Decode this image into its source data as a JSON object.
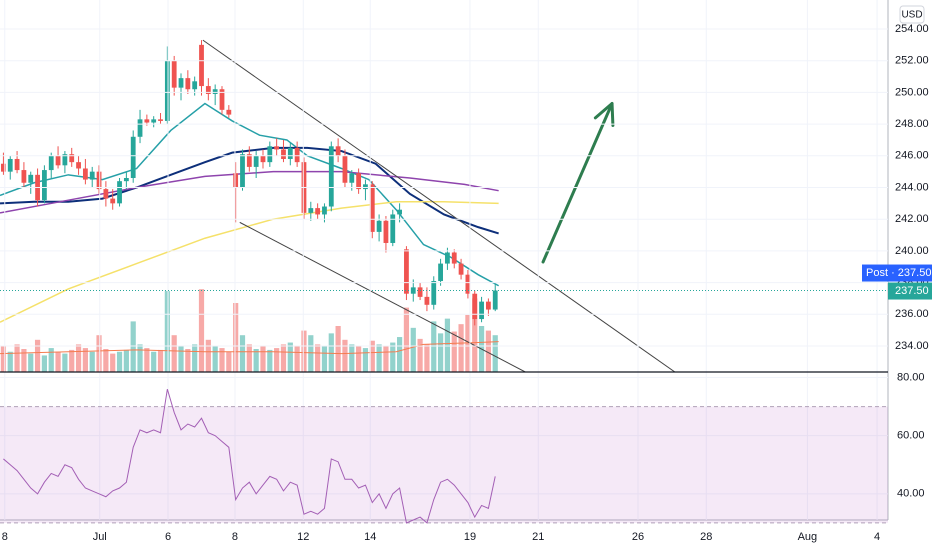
{
  "chart_data": {
    "type": "candlestick",
    "currency": "USD",
    "xlim": [
      0,
      130
    ],
    "xticks": [
      {
        "value": 0.7,
        "label": "8"
      },
      {
        "value": 14.6,
        "label": "Jul"
      },
      {
        "value": 24.6,
        "label": "6"
      },
      {
        "value": 34.4,
        "label": "8"
      },
      {
        "value": 44.4,
        "label": "12"
      },
      {
        "value": 54.2,
        "label": "14"
      },
      {
        "value": 68.8,
        "label": "19"
      },
      {
        "value": 78.8,
        "label": "21"
      },
      {
        "value": 93.4,
        "label": "26"
      },
      {
        "value": 103.4,
        "label": "28"
      },
      {
        "value": 118.2,
        "label": "Aug"
      },
      {
        "value": 128.4,
        "label": "4"
      }
    ],
    "ylim": [
      232.36,
      255.83
    ],
    "yticks": [
      {
        "value": 234,
        "label": "234.00"
      },
      {
        "value": 236,
        "label": "236.00"
      },
      {
        "value": 238,
        "label": "238.00"
      },
      {
        "value": 240,
        "label": "240.00"
      },
      {
        "value": 242,
        "label": "242.00"
      },
      {
        "value": 244,
        "label": "244.00"
      },
      {
        "value": 246,
        "label": "246.00"
      },
      {
        "value": 248,
        "label": "248.00"
      },
      {
        "value": 250,
        "label": "250.00"
      },
      {
        "value": 252,
        "label": "252.00"
      },
      {
        "value": 254,
        "label": "254.00"
      }
    ],
    "grid": true,
    "up_color": "#26a69a",
    "down_color": "#ef5350",
    "candles": [
      [
        245.5,
        246.2,
        244.8,
        245.0
      ],
      [
        245.0,
        246.0,
        244.5,
        245.8
      ],
      [
        245.8,
        246.3,
        244.9,
        245.1
      ],
      [
        245.1,
        245.6,
        244.0,
        244.3
      ],
      [
        244.3,
        245.0,
        243.6,
        244.8
      ],
      [
        244.8,
        245.2,
        242.8,
        243.2
      ],
      [
        243.2,
        245.4,
        243.0,
        245.1
      ],
      [
        245.1,
        246.2,
        244.6,
        246.0
      ],
      [
        246.0,
        246.6,
        245.2,
        245.4
      ],
      [
        245.4,
        246.3,
        244.9,
        246.1
      ],
      [
        246.1,
        246.5,
        245.3,
        245.6
      ],
      [
        245.6,
        246.0,
        244.8,
        245.2
      ],
      [
        245.2,
        245.8,
        244.2,
        244.5
      ],
      [
        244.5,
        245.3,
        244.0,
        245.0
      ],
      [
        245.0,
        245.4,
        243.6,
        243.9
      ],
      [
        243.9,
        244.4,
        242.8,
        243.3
      ],
      [
        243.3,
        243.9,
        242.6,
        243.0
      ],
      [
        243.0,
        244.6,
        242.8,
        244.4
      ],
      [
        244.4,
        245.0,
        243.9,
        244.6
      ],
      [
        244.6,
        247.6,
        244.3,
        247.2
      ],
      [
        247.2,
        248.9,
        246.8,
        248.3
      ],
      [
        248.3,
        248.6,
        247.9,
        248.1
      ],
      [
        248.1,
        248.5,
        247.8,
        248.3
      ],
      [
        248.3,
        248.7,
        248.0,
        248.2
      ],
      [
        248.2,
        252.9,
        248.0,
        252.0
      ],
      [
        252.0,
        252.3,
        249.8,
        250.3
      ],
      [
        250.3,
        251.2,
        249.5,
        250.9
      ],
      [
        250.9,
        251.4,
        249.9,
        250.2
      ],
      [
        250.2,
        251.0,
        249.8,
        250.7
      ],
      [
        253.0,
        253.3,
        249.8,
        250.4
      ],
      [
        250.4,
        250.9,
        249.5,
        249.9
      ],
      [
        249.9,
        250.5,
        249.2,
        250.2
      ],
      [
        250.2,
        250.4,
        248.6,
        248.9
      ],
      [
        248.9,
        249.2,
        248.4,
        248.6
      ],
      [
        244.9,
        245.6,
        241.8,
        244.0
      ],
      [
        244.0,
        246.4,
        243.8,
        246.1
      ],
      [
        246.1,
        246.6,
        245.0,
        245.3
      ],
      [
        245.3,
        246.3,
        244.6,
        246.0
      ],
      [
        246.0,
        246.4,
        245.2,
        245.6
      ],
      [
        245.6,
        246.9,
        245.3,
        246.6
      ],
      [
        246.6,
        247.1,
        246.0,
        246.4
      ],
      [
        246.4,
        247.0,
        245.6,
        245.8
      ],
      [
        245.8,
        246.8,
        245.4,
        246.5
      ],
      [
        246.5,
        246.9,
        245.3,
        245.6
      ],
      [
        245.6,
        245.9,
        242.0,
        242.4
      ],
      [
        242.4,
        243.1,
        241.9,
        242.7
      ],
      [
        242.7,
        243.0,
        242.0,
        242.3
      ],
      [
        242.3,
        243.0,
        241.8,
        242.8
      ],
      [
        242.8,
        246.9,
        242.5,
        246.6
      ],
      [
        246.6,
        247.1,
        245.6,
        246.0
      ],
      [
        246.0,
        246.4,
        244.0,
        244.3
      ],
      [
        244.3,
        245.1,
        243.8,
        244.9
      ],
      [
        244.9,
        245.2,
        243.6,
        243.9
      ],
      [
        243.9,
        244.5,
        243.2,
        244.2
      ],
      [
        244.2,
        244.4,
        240.8,
        241.2
      ],
      [
        241.2,
        242.3,
        240.6,
        241.9
      ],
      [
        241.9,
        242.2,
        239.9,
        240.5
      ],
      [
        240.5,
        242.6,
        240.3,
        242.3
      ],
      [
        242.3,
        243.0,
        241.8,
        242.6
      ],
      [
        240.1,
        240.3,
        236.9,
        237.3
      ],
      [
        237.3,
        238.2,
        236.8,
        237.7
      ],
      [
        237.7,
        238.0,
        236.9,
        237.1
      ],
      [
        237.1,
        237.7,
        236.2,
        236.6
      ],
      [
        236.6,
        238.4,
        236.3,
        238.1
      ],
      [
        238.1,
        239.5,
        237.8,
        239.2
      ],
      [
        239.2,
        240.2,
        238.8,
        239.9
      ],
      [
        239.9,
        240.1,
        238.9,
        239.2
      ],
      [
        239.2,
        239.5,
        238.2,
        238.5
      ],
      [
        238.5,
        238.8,
        237.0,
        237.3
      ],
      [
        237.3,
        237.5,
        235.3,
        235.7
      ],
      [
        235.7,
        237.1,
        235.5,
        236.8
      ],
      [
        236.8,
        237.0,
        235.9,
        236.3
      ],
      [
        236.3,
        237.9,
        236.2,
        237.5
      ]
    ],
    "volume": {
      "vlim": [
        0,
        100
      ],
      "values": [
        28,
        22,
        30,
        25,
        20,
        35,
        18,
        26,
        22,
        20,
        24,
        30,
        26,
        22,
        40,
        25,
        20,
        22,
        24,
        55,
        30,
        26,
        22,
        24,
        88,
        40,
        28,
        25,
        30,
        90,
        35,
        28,
        26,
        22,
        75,
        40,
        30,
        25,
        28,
        24,
        26,
        30,
        32,
        28,
        45,
        40,
        30,
        28,
        42,
        50,
        35,
        30,
        28,
        26,
        34,
        30,
        28,
        32,
        38,
        70,
        48,
        36,
        30,
        55,
        42,
        58,
        44,
        52,
        62,
        80,
        50,
        45,
        40
      ],
      "ma": {
        "color": "#f57c4f",
        "x": [
          0,
          10,
          20,
          30,
          40,
          50,
          58,
          62,
          70,
          73
        ],
        "values": [
          20,
          22,
          24,
          22,
          22,
          20,
          22,
          30,
          32,
          33
        ]
      }
    },
    "series": [
      {
        "color": "#26a0a8",
        "x": [
          0,
          5,
          10,
          15,
          20,
          25,
          30,
          34,
          38,
          42,
          45,
          50,
          54,
          58,
          62,
          66,
          70,
          73
        ],
        "values": [
          243.5,
          244.3,
          244.8,
          244.5,
          245.2,
          247.6,
          249.3,
          248.2,
          247.3,
          247.0,
          246.0,
          245.2,
          244.5,
          242.6,
          240.4,
          239.6,
          238.5,
          237.8
        ]
      },
      {
        "color": "#0d2f7a",
        "x": [
          0,
          5,
          10,
          15,
          20,
          25,
          30,
          34,
          40,
          45,
          50,
          55,
          60,
          65,
          70,
          73
        ],
        "values": [
          243.0,
          243.1,
          243.1,
          243.3,
          244.0,
          244.8,
          245.6,
          246.2,
          246.5,
          246.5,
          246.3,
          245.5,
          243.6,
          242.3,
          241.5,
          241.1
        ]
      },
      {
        "color": "#8e44ad",
        "x": [
          0,
          10,
          20,
          30,
          40,
          50,
          60,
          68,
          73
        ],
        "values": [
          242.4,
          243.2,
          244.0,
          244.7,
          245.0,
          245.0,
          244.6,
          244.2,
          243.8
        ]
      },
      {
        "color": "#f5e16a",
        "x": [
          0,
          10,
          20,
          30,
          40,
          50,
          58,
          65,
          73
        ],
        "values": [
          235.5,
          237.6,
          239.2,
          240.8,
          242.0,
          242.7,
          243.1,
          243.1,
          243.0
        ]
      }
    ],
    "trendlines": [
      {
        "color": "#444",
        "x": [
          29.7,
          98.8
        ],
        "y": [
          253.3,
          232.36
        ]
      },
      {
        "color": "#444",
        "x": [
          35.1,
          76.9
        ],
        "y": [
          241.8,
          232.36
        ]
      }
    ],
    "arrow": {
      "color": "#2e7d4f",
      "x": [
        79.5,
        89.6
      ],
      "y": [
        239.3,
        249.3
      ]
    },
    "price_line": {
      "value": 237.5,
      "label": "237.50",
      "tag": "Post · 237.50"
    },
    "rsi": {
      "color": "#a35fb5",
      "ylim": [
        31.0,
        81.9
      ],
      "yticks": [
        {
          "value": 40,
          "label": "40.00"
        },
        {
          "value": 60,
          "label": "60.00"
        },
        {
          "value": 80,
          "label": "80.00"
        }
      ],
      "band": [
        30,
        70
      ],
      "values": [
        52,
        50,
        48,
        45,
        42,
        40,
        44,
        47,
        46,
        50,
        49,
        45,
        42,
        41,
        40,
        39,
        41,
        42,
        44,
        56,
        62,
        61,
        62,
        61,
        76,
        68,
        62,
        64,
        63,
        66,
        61,
        60,
        58,
        56,
        38,
        42,
        44,
        40,
        43,
        46,
        45,
        41,
        44,
        43,
        33,
        34,
        33,
        35,
        52,
        51,
        45,
        45,
        42,
        43,
        37,
        40,
        35,
        40,
        42,
        30,
        31,
        32,
        30,
        38,
        44,
        45,
        43,
        40,
        37,
        32,
        36,
        35,
        46
      ]
    }
  }
}
